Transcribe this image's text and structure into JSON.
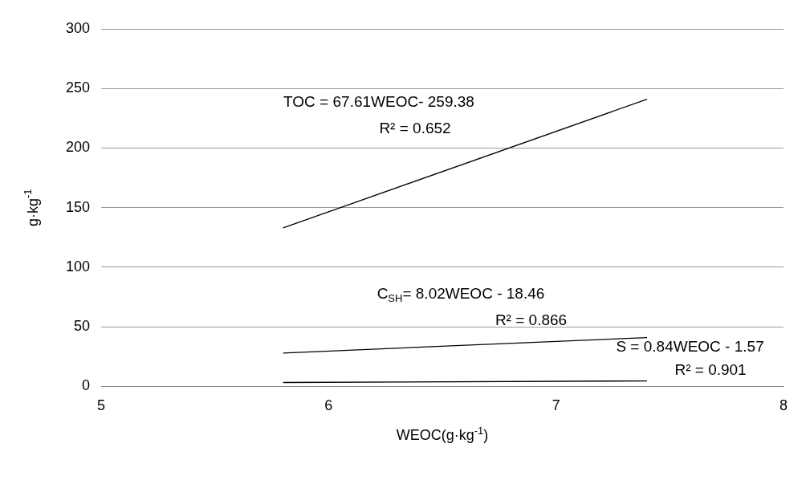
{
  "chart_data": {
    "type": "line",
    "xlabel": "WEOC(g·kg$^{-1}$)",
    "ylabel": "g·kg$^{-1}$",
    "xlim": [
      5,
      8
    ],
    "xticks": [
      5,
      6,
      7,
      8
    ],
    "ylim": [
      0,
      300
    ],
    "yticks": [
      0,
      50,
      100,
      150,
      200,
      250,
      300
    ],
    "grid": "y",
    "legend": false,
    "marker": "none",
    "line_style": "solid",
    "x": [
      5.8,
      7.4
    ],
    "series": [
      {
        "color": "#000000",
        "values": [
          133,
          241
        ]
      },
      {
        "color": "#000000",
        "values": [
          28,
          41
        ]
      },
      {
        "color": "#000000",
        "values": [
          3.3,
          4.6
        ]
      }
    ],
    "annotations": [
      "TOC = 67.61WEOC- 259.38",
      "R² = 0.652",
      "C$_{SH}$= 8.02WEOC - 18.46",
      "R² = 0.866",
      "S = 0.84WEOC - 1.57",
      "R² = 0.901"
    ]
  }
}
